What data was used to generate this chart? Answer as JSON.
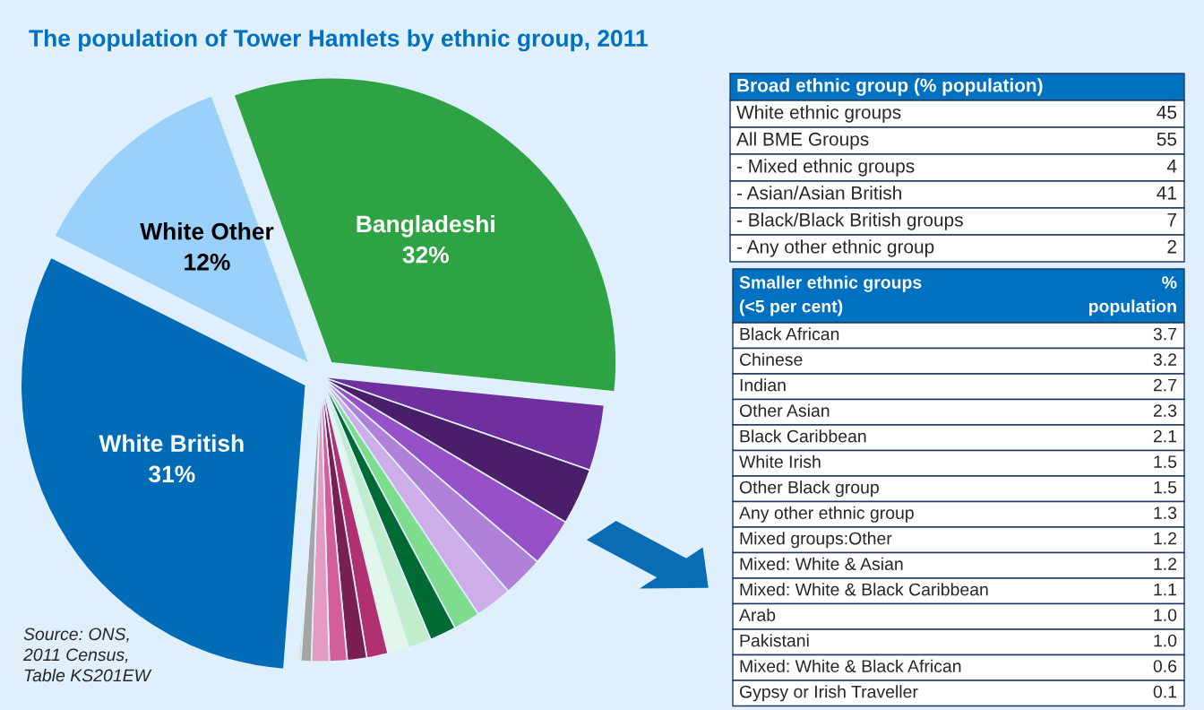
{
  "chart_data": [
    {
      "type": "pie",
      "title": "The population of Tower Hamlets by ethnic group, 2011",
      "categories": [
        "Bangladeshi",
        null,
        null,
        null,
        null,
        null,
        null,
        null,
        null,
        null,
        null,
        null,
        null,
        null,
        null,
        null,
        "White British",
        "White Other"
      ],
      "values": [
        32,
        3.7,
        3.2,
        2.7,
        2.3,
        2.1,
        1.5,
        1.5,
        1.3,
        1.2,
        1.2,
        1.1,
        1.0,
        1.0,
        0.6,
        0.1,
        31,
        12
      ],
      "value_labels": [
        "32%",
        null,
        null,
        null,
        null,
        null,
        null,
        null,
        null,
        null,
        null,
        null,
        null,
        null,
        null,
        null,
        "31%",
        "12%"
      ],
      "colors": [
        "#2ea343",
        "#6f2f9f",
        "#4a1e68",
        "#9650c8",
        "#b180d8",
        "#cdaee8",
        "#7ddc8e",
        "#006a35",
        "#c0edcc",
        "#e0f7ea",
        "#b03070",
        "#7a2050",
        "#d45e9a",
        "#e59abf",
        "#a5a5a5",
        "#f0a060",
        "#006bb6",
        "#99d1fb"
      ],
      "annotations": [
        "Source: ONS,\n2011 Census,\nTable KS201EW"
      ]
    },
    {
      "type": "other",
      "title": "Broad ethnic group (% population)",
      "categories": [
        "White ethnic groups",
        "All BME Groups",
        "- Mixed ethnic groups",
        "- Asian/Asian British",
        "- Black/Black British groups",
        "- Any other ethnic group"
      ],
      "values": [
        45,
        55,
        4,
        41,
        7,
        2
      ],
      "data_labels": true
    },
    {
      "type": "other",
      "title": "Smaller ethnic groups\n(<5 per cent)",
      "annotations": [
        "%\npopulation"
      ],
      "categories": [
        "Black African",
        "Chinese",
        "Indian",
        "Other Asian",
        "Black Caribbean",
        "White Irish",
        "Other Black group",
        "Any other ethnic group",
        "Mixed groups:Other",
        "Mixed: White & Asian",
        "Mixed: White & Black Caribbean",
        "Arab",
        "Pakistani",
        "Mixed: White & Black African",
        "Gypsy or Irish Traveller"
      ],
      "values": [
        3.7,
        3.2,
        2.7,
        2.3,
        2.1,
        1.5,
        1.5,
        1.3,
        1.2,
        1.2,
        1.1,
        1.0,
        1.0,
        0.6,
        0.1
      ],
      "value_labels": [
        "3.7",
        "3.2",
        "2.7",
        "2.3",
        "2.1",
        "1.5",
        "1.5",
        "1.3",
        "1.2",
        "1.2",
        "1.1",
        "1.0",
        "1.0",
        "0.6",
        "0.1"
      ]
    }
  ]
}
